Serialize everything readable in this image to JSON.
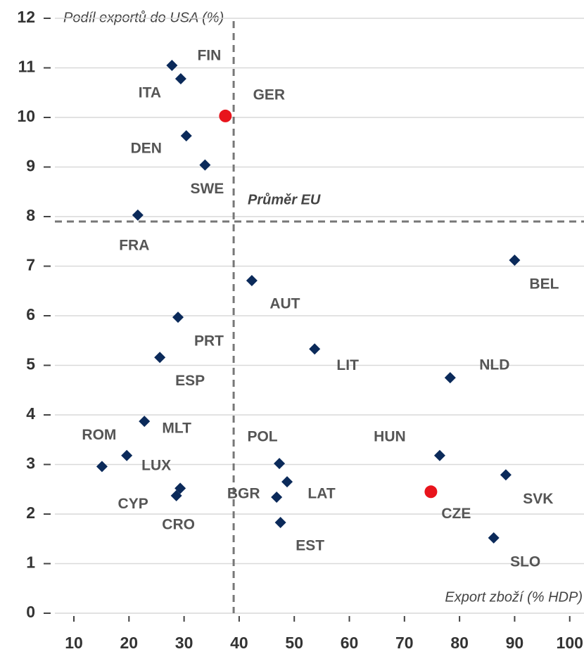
{
  "chart_data": {
    "type": "scatter",
    "y_label": "Podíl exportů do USA (%)",
    "x_label": "Export zboží (% HDP)",
    "avg_label": "Průměr EU",
    "eu_avg": {
      "x": 39,
      "y": 7.9
    },
    "xlim": [
      5,
      102.5
    ],
    "xticks": [
      10,
      20,
      30,
      40,
      50,
      60,
      70,
      80,
      90,
      100
    ],
    "ylim": [
      0,
      12
    ],
    "yticks": [
      0,
      1,
      2,
      3,
      4,
      5,
      6,
      7,
      8,
      9,
      10,
      11,
      12
    ],
    "grid": true,
    "labels": [
      "FIN",
      "ITA",
      "GER",
      "DEN",
      "SWE",
      "FRA",
      "BEL",
      "AUT",
      "PRT",
      "LIT",
      "ESP",
      "NLD",
      "MLT",
      "LUX",
      "HUN",
      "ROM",
      "POL",
      "SVK",
      "LAT",
      "CYP",
      "CZE",
      "CRO",
      "BGR",
      "EST",
      "SLO"
    ],
    "x": [
      27.8,
      29.4,
      37.5,
      30.4,
      33.8,
      21.6,
      90.0,
      42.3,
      28.9,
      53.7,
      25.6,
      78.3,
      22.8,
      19.6,
      76.4,
      15.1,
      47.3,
      88.4,
      48.7,
      29.3,
      74.8,
      28.6,
      46.8,
      47.5,
      86.2
    ],
    "y": [
      11.05,
      10.78,
      10.03,
      9.63,
      9.04,
      8.03,
      7.12,
      6.71,
      5.97,
      5.33,
      5.16,
      4.75,
      3.87,
      3.18,
      3.18,
      2.96,
      3.02,
      2.79,
      2.65,
      2.52,
      2.45,
      2.37,
      2.34,
      1.83,
      1.52
    ],
    "colors": [
      "#0b2a5a",
      "#0b2a5a",
      "#e8141c",
      "#0b2a5a",
      "#0b2a5a",
      "#0b2a5a",
      "#0b2a5a",
      "#0b2a5a",
      "#0b2a5a",
      "#0b2a5a",
      "#0b2a5a",
      "#0b2a5a",
      "#0b2a5a",
      "#0b2a5a",
      "#0b2a5a",
      "#0b2a5a",
      "#0b2a5a",
      "#0b2a5a",
      "#0b2a5a",
      "#0b2a5a",
      "#e8141c",
      "#0b2a5a",
      "#0b2a5a",
      "#0b2a5a",
      "#0b2a5a"
    ]
  }
}
